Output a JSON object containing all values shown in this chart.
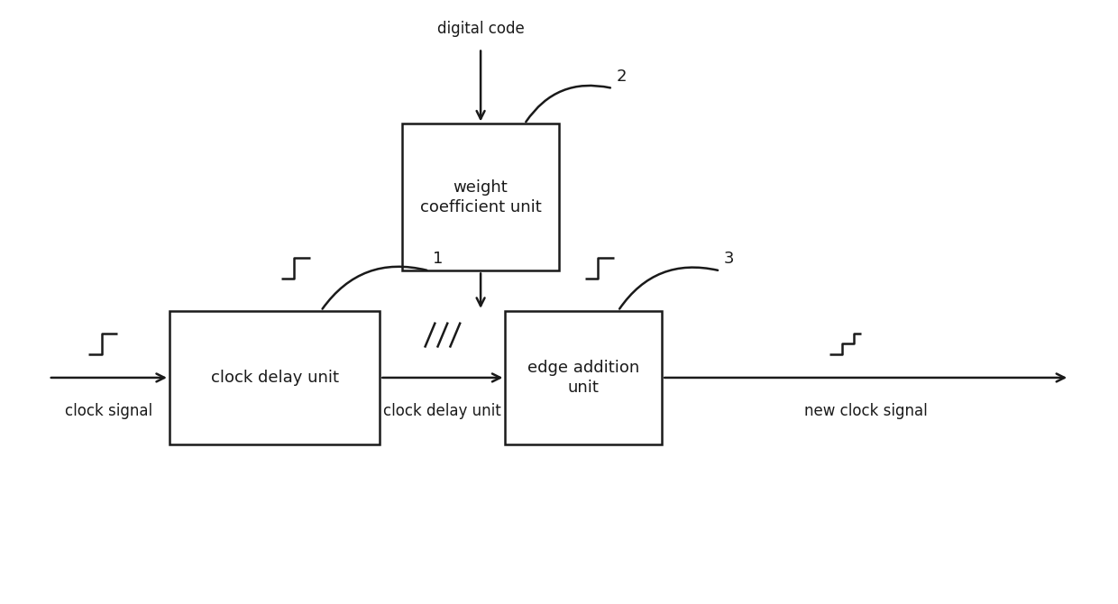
{
  "bg_color": "#ffffff",
  "line_color": "#1a1a1a",
  "box_color": "#ffffff",
  "box_edge_color": "#1a1a1a",
  "font_color": "#1a1a1a",
  "font_size": 13,
  "label_font_size": 12,
  "num_font_size": 13,
  "clock_delay_label": [
    "clock delay unit"
  ],
  "edge_addition_label": [
    "edge addition",
    "unit"
  ],
  "weight_coeff_label": [
    "weight",
    "coefficient unit"
  ],
  "label_clock_signal": "clock signal",
  "label_new_clock_signal": "new clock signal",
  "label_clock_delay_unit": "clock delay unit",
  "label_digital_code": "digital code",
  "num1": "1",
  "num2": "2",
  "num3": "3",
  "figw": 12.4,
  "figh": 6.7,
  "dpi": 100
}
